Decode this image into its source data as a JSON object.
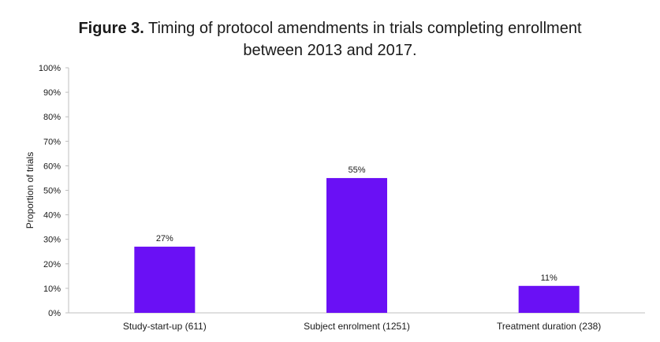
{
  "title": {
    "prefix": "Figure 3.",
    "text_line1": "Timing of protocol amendments in trials completing enrollment",
    "text_line2": "between 2013 and 2017."
  },
  "colors": {
    "bar": "#6a10f5",
    "axis": "#bfbfbf"
  },
  "chart_data": {
    "type": "bar",
    "title": "Figure 3. Timing of protocol amendments in trials completing enrollment between 2013 and 2017.",
    "ylabel": "Proportion of trials",
    "xlabel": "",
    "ylim": [
      0,
      100
    ],
    "yticks": [
      "0%",
      "10%",
      "20%",
      "30%",
      "40%",
      "50%",
      "60%",
      "70%",
      "80%",
      "90%",
      "100%"
    ],
    "categories": [
      "Study-start-up (611)",
      "Subject enrolment (1251)",
      "Treatment duration (238)"
    ],
    "values": [
      27,
      55,
      11
    ],
    "data_labels": [
      "27%",
      "55%",
      "11%"
    ],
    "grid": false,
    "legend": "none"
  }
}
